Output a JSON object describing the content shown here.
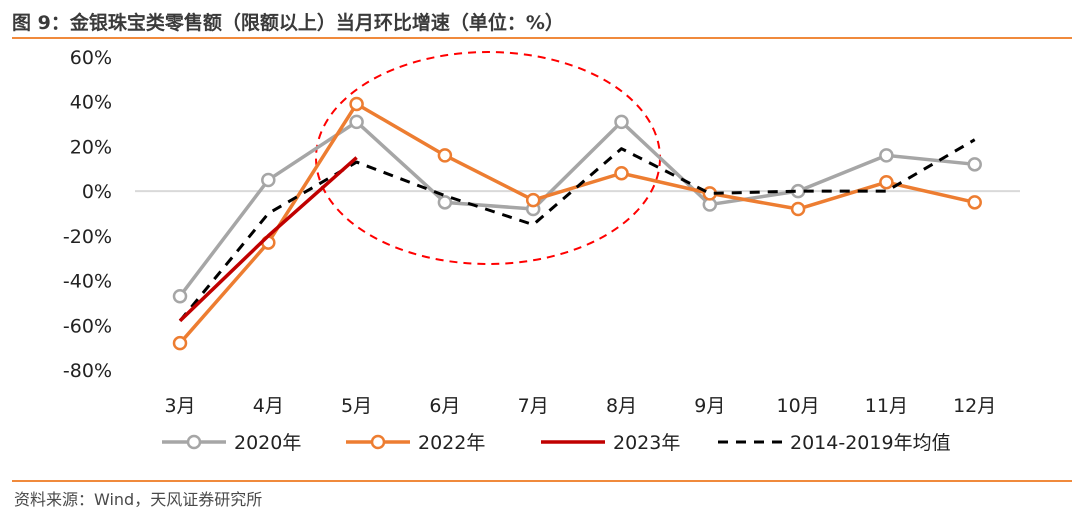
{
  "title": "图 9：金银珠宝类零售额（限额以上）当月环比增速（单位：%）",
  "source": "资料来源：Wind，天风证券研究所",
  "colors": {
    "s2020": "#a6a6a6",
    "s2022": "#ed7d31",
    "s2023": "#c00000",
    "savg": "#000000",
    "accent": "#f08a3c",
    "ellipse": "#ff0000"
  },
  "chart_data": {
    "type": "line",
    "categories": [
      "3月",
      "4月",
      "5月",
      "6月",
      "7月",
      "8月",
      "9月",
      "10月",
      "11月",
      "12月"
    ],
    "ylim": [
      -80,
      60
    ],
    "yticks": [
      "60%",
      "40%",
      "20%",
      "0%",
      "-20%",
      "-40%",
      "-60%",
      "-80%"
    ],
    "ytick_values": [
      60,
      40,
      20,
      0,
      -20,
      -40,
      -60,
      -80
    ],
    "series": [
      {
        "name": "2020年",
        "style": "marker-line",
        "values": [
          -47,
          5,
          31,
          -5,
          -8,
          31,
          -6,
          0,
          16,
          12
        ]
      },
      {
        "name": "2022年",
        "style": "marker-line",
        "values": [
          -68,
          -23,
          39,
          16,
          -4,
          8,
          -1,
          -8,
          4,
          -5
        ]
      },
      {
        "name": "2023年",
        "style": "solid",
        "values": [
          -58,
          -20,
          15,
          null,
          null,
          null,
          null,
          null,
          null,
          null
        ]
      },
      {
        "name": "2014-2019年均值",
        "style": "dashed",
        "values": [
          -58,
          -10,
          13,
          -2,
          -15,
          19,
          -1,
          0,
          0,
          23
        ]
      }
    ],
    "grid": false,
    "legend_position": "bottom"
  }
}
